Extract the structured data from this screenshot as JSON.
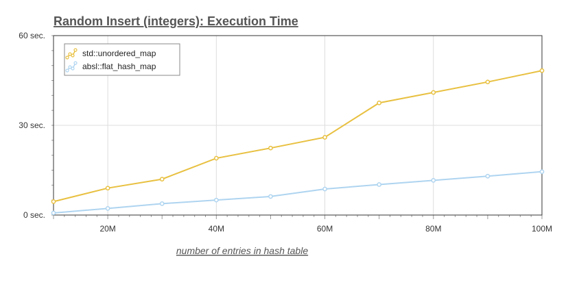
{
  "chart_data": {
    "type": "line",
    "title": "Random Insert (integers): Execution Time",
    "xlabel": "number of entries in hash table",
    "ylabel": "",
    "x": [
      10,
      20,
      30,
      40,
      50,
      60,
      70,
      80,
      90,
      100
    ],
    "xlim": [
      10,
      100
    ],
    "ylim": [
      0,
      60
    ],
    "x_ticks": [
      {
        "value": 20,
        "label": "20M"
      },
      {
        "value": 40,
        "label": "40M"
      },
      {
        "value": 60,
        "label": "60M"
      },
      {
        "value": 80,
        "label": "80M"
      },
      {
        "value": 100,
        "label": "100M"
      }
    ],
    "y_ticks": [
      {
        "value": 0,
        "label": "0 sec."
      },
      {
        "value": 30,
        "label": "30 sec."
      },
      {
        "value": 60,
        "label": "60 sec."
      }
    ],
    "grid": true,
    "legend_position": "top-left",
    "series": [
      {
        "name": "std::unordered_map",
        "color": "#e8c040",
        "values": [
          4.5,
          9.0,
          12.0,
          19.0,
          22.4,
          26.0,
          37.5,
          41.0,
          44.5,
          48.3
        ]
      },
      {
        "name": "absl::flat_hash_map",
        "color": "#aed4f0",
        "values": [
          0.7,
          2.2,
          3.8,
          5.0,
          6.2,
          8.7,
          10.2,
          11.6,
          13.0,
          14.5
        ]
      }
    ]
  }
}
